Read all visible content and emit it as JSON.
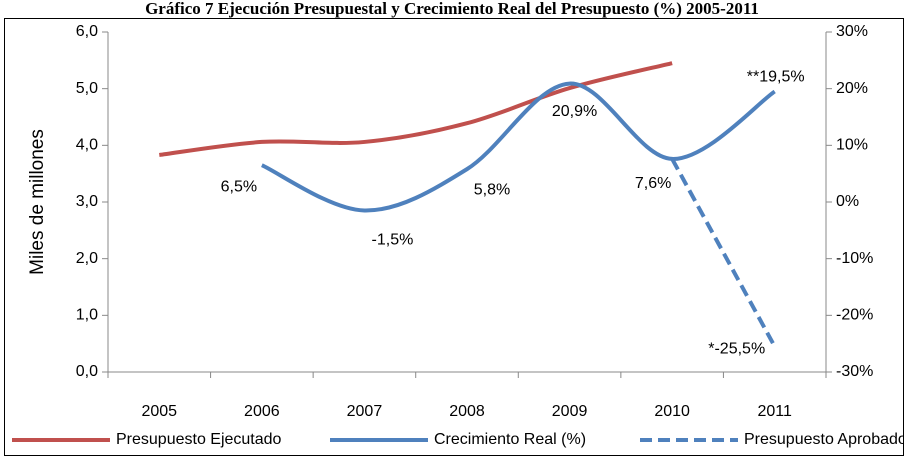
{
  "chart_data": {
    "type": "line",
    "title": "Gráfico 7 Ejecución Presupuestal y Crecimiento Real del Presupuesto (%) 2005-2011",
    "ylabel": "Miles de millones",
    "categories": [
      "2005",
      "2006",
      "2007",
      "2008",
      "2009",
      "2010",
      "2011"
    ],
    "series": [
      {
        "name": "Presupuesto Ejecutado",
        "color": "#c0504d",
        "values": [
          3.83,
          4.06,
          4.06,
          4.39,
          5.01,
          5.45,
          null
        ]
      },
      {
        "name": "Crecimiento Real (%)",
        "color": "#4f81bd",
        "axis": "y2",
        "values": [
          null,
          6.5,
          -1.5,
          5.8,
          20.9,
          7.6,
          19.5
        ],
        "value_labels": [
          null,
          "6,5%",
          "-1,5%",
          "5,8%",
          "20,9%",
          "7,6%",
          "**19,5%"
        ]
      },
      {
        "name": "Presupuesto Aprobado",
        "color": "#4f81bd",
        "axis": "y2",
        "dashed": true,
        "values": [
          null,
          null,
          null,
          null,
          null,
          7.6,
          -25.5
        ],
        "value_labels": [
          null,
          null,
          null,
          null,
          null,
          null,
          "*-25,5%"
        ]
      }
    ],
    "ylim": [
      0,
      6
    ],
    "yticks": [
      {
        "value": 0,
        "label": "0,0"
      },
      {
        "value": 1,
        "label": "1,0"
      },
      {
        "value": 2,
        "label": "2,0"
      },
      {
        "value": 3,
        "label": "3,0"
      },
      {
        "value": 4,
        "label": "4,0"
      },
      {
        "value": 5,
        "label": "5,0"
      },
      {
        "value": 6,
        "label": "6,0"
      }
    ],
    "y2lim": [
      -30,
      30
    ],
    "y2ticks": [
      {
        "value": -30,
        "label": "-30%"
      },
      {
        "value": -20,
        "label": "-20%"
      },
      {
        "value": -10,
        "label": "-10%"
      },
      {
        "value": 0,
        "label": "0%"
      },
      {
        "value": 10,
        "label": "10%"
      },
      {
        "value": 20,
        "label": "20%"
      },
      {
        "value": 30,
        "label": "30%"
      }
    ],
    "legend": "bottom"
  }
}
